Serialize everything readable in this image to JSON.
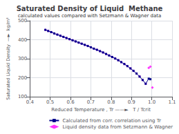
{
  "chart_data": {
    "type": "line",
    "title": "Saturated Density of Liquid  Methane",
    "subtitle": "calculated values compared with Setzmann & Wagner data",
    "xlabel": "Reduced Temperature , Tr ——►   T / Tcrit",
    "ylabel": "Saturated Liquid Density  —►  kg/m³",
    "xlim": [
      0.4,
      1.1
    ],
    "ylim": [
      100,
      500
    ],
    "xticks": [
      0.4,
      0.5,
      0.6,
      0.7,
      0.8,
      0.9,
      {
        "value": 1,
        "label": "1.0"
      },
      1.1
    ],
    "yticks": [
      100,
      200,
      300,
      400,
      500
    ],
    "grid": true,
    "legend": "lower right",
    "series": [
      {
        "name": "Calculated from corr. correlation using Tr",
        "type": "line",
        "color": "#00008B",
        "marker": "square",
        "line_style": "solid",
        "x": [
          0.476,
          0.49,
          0.505,
          0.52,
          0.535,
          0.55,
          0.565,
          0.58,
          0.595,
          0.61,
          0.625,
          0.64,
          0.655,
          0.67,
          0.685,
          0.7,
          0.715,
          0.73,
          0.745,
          0.76,
          0.775,
          0.79,
          0.805,
          0.82,
          0.835,
          0.85,
          0.865,
          0.88,
          0.895,
          0.91,
          0.925,
          0.94,
          0.955,
          0.97,
          0.985,
          0.993
        ],
        "values": [
          452,
          446,
          440,
          433,
          427,
          421,
          415,
          409,
          403,
          397,
          391,
          385,
          379,
          373,
          367,
          360,
          353,
          347,
          340,
          333,
          325,
          317,
          309,
          301,
          292,
          282,
          272,
          261,
          249,
          236,
          222,
          206,
          188,
          168,
          195,
          192
        ]
      },
      {
        "name": "Liquid density data from Setzmann & Wagner",
        "type": "scatter",
        "color": "#ff00ff",
        "marker": "diamond",
        "x": [
          0.476,
          0.49,
          0.505,
          0.52,
          0.535,
          0.55,
          0.565,
          0.58,
          0.595,
          0.61,
          0.625,
          0.64,
          0.655,
          0.67,
          0.685,
          0.7,
          0.715,
          0.73,
          0.745,
          0.76,
          0.775,
          0.79,
          0.805,
          0.82,
          0.835,
          0.85,
          0.865,
          0.88,
          0.895,
          0.91,
          0.925,
          0.94,
          0.955,
          0.97,
          0.985,
          0.993,
          1.003
        ],
        "values": [
          452,
          446,
          440,
          433,
          427,
          421,
          415,
          409,
          403,
          397,
          391,
          385,
          379,
          373,
          367,
          360,
          353,
          347,
          340,
          333,
          325,
          317,
          309,
          301,
          292,
          282,
          272,
          261,
          249,
          236,
          222,
          206,
          188,
          168,
          252,
          258,
          148
        ]
      }
    ]
  }
}
